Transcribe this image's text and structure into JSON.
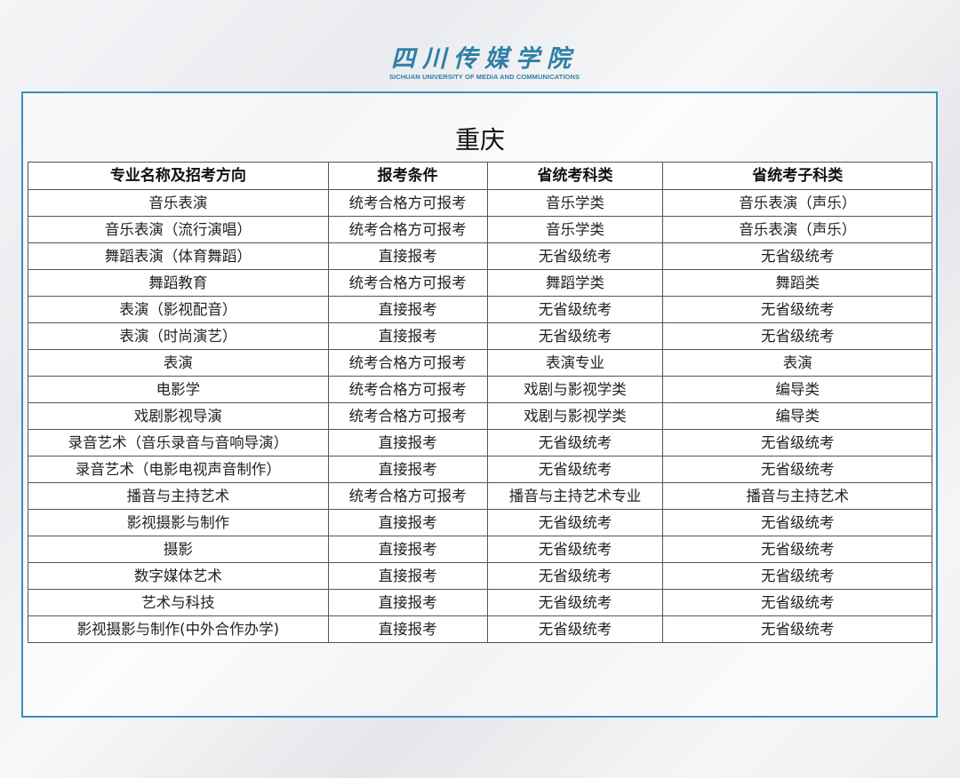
{
  "logo": {
    "chinese": "四川传媒学院",
    "english": "SICHUAN UNIVERSITY OF MEDIA AND COMMUNICATIONS",
    "color": "#2f7fa7"
  },
  "title": "重庆",
  "table": {
    "headers": [
      "专业名称及招考方向",
      "报考条件",
      "省统考科类",
      "省统考子科类"
    ],
    "rows": [
      [
        "音乐表演",
        "统考合格方可报考",
        "音乐学类",
        "音乐表演（声乐）"
      ],
      [
        "音乐表演（流行演唱）",
        "统考合格方可报考",
        "音乐学类",
        "音乐表演（声乐）"
      ],
      [
        "舞蹈表演（体育舞蹈）",
        "直接报考",
        "无省级统考",
        "无省级统考"
      ],
      [
        "舞蹈教育",
        "统考合格方可报考",
        "舞蹈学类",
        "舞蹈类"
      ],
      [
        "表演（影视配音）",
        "直接报考",
        "无省级统考",
        "无省级统考"
      ],
      [
        "表演（时尚演艺）",
        "直接报考",
        "无省级统考",
        "无省级统考"
      ],
      [
        "表演",
        "统考合格方可报考",
        "表演专业",
        "表演"
      ],
      [
        "电影学",
        "统考合格方可报考",
        "戏剧与影视学类",
        "编导类"
      ],
      [
        "戏剧影视导演",
        "统考合格方可报考",
        "戏剧与影视学类",
        "编导类"
      ],
      [
        "录音艺术（音乐录音与音响导演）",
        "直接报考",
        "无省级统考",
        "无省级统考"
      ],
      [
        "录音艺术（电影电视声音制作）",
        "直接报考",
        "无省级统考",
        "无省级统考"
      ],
      [
        "播音与主持艺术",
        "统考合格方可报考",
        "播音与主持艺术专业",
        "播音与主持艺术"
      ],
      [
        "影视摄影与制作",
        "直接报考",
        "无省级统考",
        "无省级统考"
      ],
      [
        "摄影",
        "直接报考",
        "无省级统考",
        "无省级统考"
      ],
      [
        "数字媒体艺术",
        "直接报考",
        "无省级统考",
        "无省级统考"
      ],
      [
        "艺术与科技",
        "直接报考",
        "无省级统考",
        "无省级统考"
      ],
      [
        "影视摄影与制作(中外合作办学)",
        "直接报考",
        "无省级统考",
        "无省级统考"
      ]
    ]
  }
}
